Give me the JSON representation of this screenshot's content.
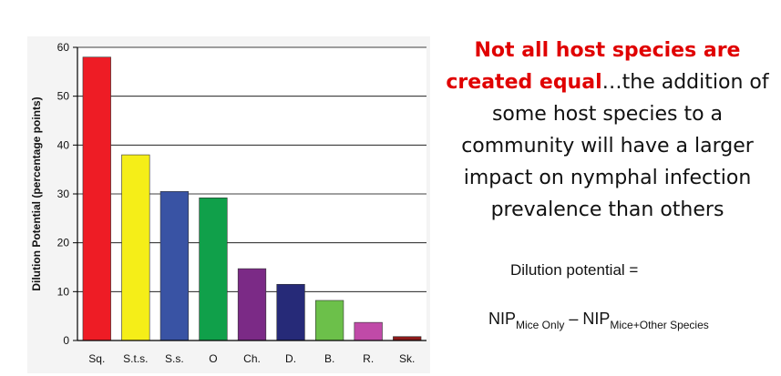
{
  "chart_data": {
    "type": "bar",
    "categories": [
      "Sq.",
      "S.t.s.",
      "S.s.",
      "O",
      "Ch.",
      "D.",
      "B.",
      "R.",
      "Sk."
    ],
    "values": [
      58,
      38,
      30.5,
      29.2,
      14.7,
      11.5,
      8.2,
      3.7,
      0.8
    ],
    "colors": [
      "#ee1c25",
      "#f5ee18",
      "#3953a4",
      "#10a04a",
      "#7b2a86",
      "#262a78",
      "#6cc04a",
      "#c04aa8",
      "#8b1a1a"
    ],
    "ylabel": "Dilution Potential (percentage points)",
    "ylim": [
      0,
      60
    ],
    "yticks": [
      0,
      10,
      20,
      30,
      40,
      50,
      60
    ],
    "grid": true
  },
  "headline": {
    "emphasis": "Not all host species are created equal",
    "rest": "…the addition of some host species to a community will have a larger impact on nymphal infection prevalence than others"
  },
  "formula": {
    "label": "Dilution potential =",
    "term1": "NIP",
    "term1_sub": "Mice Only",
    "operator": " – ",
    "term2": "NIP",
    "term2_sub": "Mice+Other Species"
  },
  "colors": {
    "emphasis": "#e00000",
    "text": "#111111"
  }
}
